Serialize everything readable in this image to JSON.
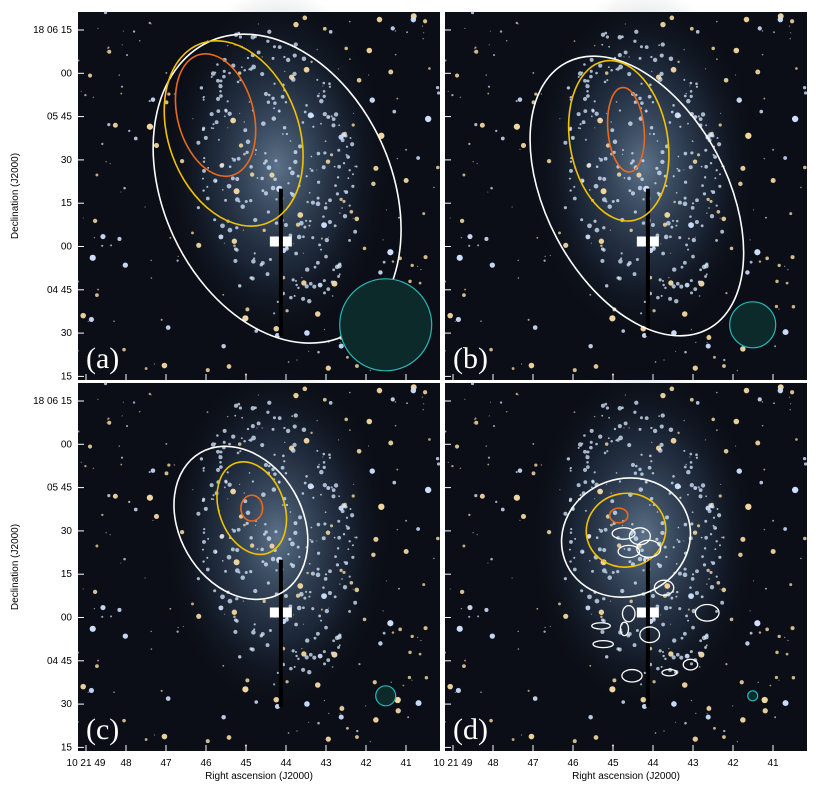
{
  "figure": {
    "x_axis_label": "Right ascension (J2000)",
    "y_axis_label": "Declination (J2000)",
    "x_ticks": [
      "10 21 49",
      "48",
      "47",
      "46",
      "45",
      "44",
      "43",
      "42",
      "41"
    ],
    "y_ticks": [
      "18 06 15",
      "00",
      "05 45",
      "30",
      "15",
      "00",
      "04 45",
      "30",
      "15"
    ],
    "panels": [
      {
        "label": "(a)"
      },
      {
        "label": "(b)"
      },
      {
        "label": "(c)"
      },
      {
        "label": "(d)"
      }
    ]
  }
}
